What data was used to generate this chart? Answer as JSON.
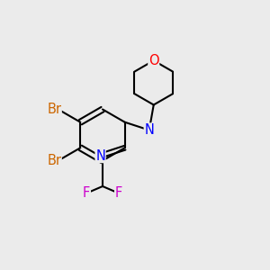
{
  "background_color": "#ebebeb",
  "atom_colors": {
    "C": "#000000",
    "N": "#0000ff",
    "O": "#ff0000",
    "Br": "#cc6600",
    "F": "#cc00cc",
    "H": "#008080"
  },
  "bond_color": "#000000",
  "bond_width": 1.5,
  "font_size": 10.5
}
